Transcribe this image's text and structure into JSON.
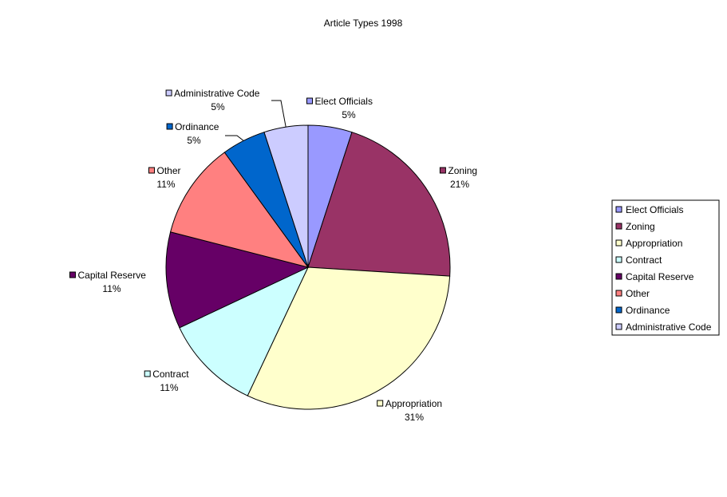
{
  "chart_data": {
    "type": "pie",
    "title": "Article Types 1998",
    "slices": [
      {
        "label": "Elect Officials",
        "value": 5,
        "percent_label": "5%",
        "color": "#9999ff"
      },
      {
        "label": "Zoning",
        "value": 21,
        "percent_label": "21%",
        "color": "#993366"
      },
      {
        "label": "Appropriation",
        "value": 31,
        "percent_label": "31%",
        "color": "#ffffcc"
      },
      {
        "label": "Contract",
        "value": 11,
        "percent_label": "11%",
        "color": "#ccffff"
      },
      {
        "label": "Capital Reserve",
        "value": 11,
        "percent_label": "11%",
        "color": "#660066"
      },
      {
        "label": "Other",
        "value": 11,
        "percent_label": "11%",
        "color": "#ff8080"
      },
      {
        "label": "Ordinance",
        "value": 5,
        "percent_label": "5%",
        "color": "#0066cc"
      },
      {
        "label": "Administrative Code",
        "value": 5,
        "percent_label": "5%",
        "color": "#ccccff"
      }
    ],
    "legend": {
      "position": "right",
      "entries": [
        "Elect Officials",
        "Zoning",
        "Appropriation",
        "Contract",
        "Capital Reserve",
        "Other",
        "Ordinance",
        "Administrative Code"
      ]
    }
  }
}
